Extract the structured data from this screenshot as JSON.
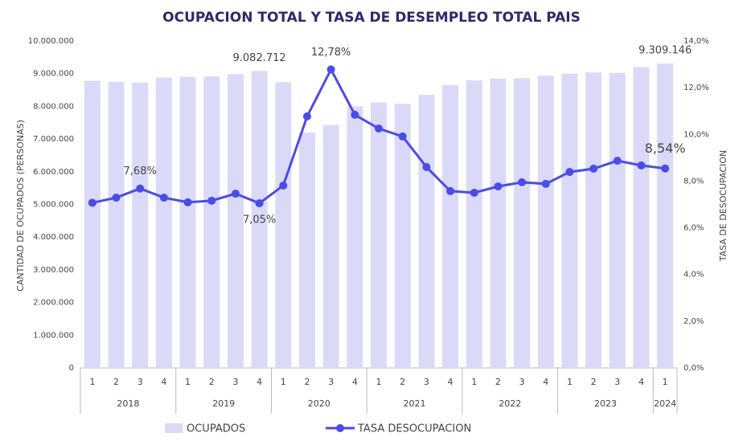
{
  "chart_data": {
    "type": "bar-line",
    "title": "OCUPACION TOTAL Y TASA DE DESEMPLEO TOTAL PAIS",
    "y_label": "CANTIDAD DE OCUPADOS (PERSONAS)",
    "y2_label": "TASA DE DESOCUPACION",
    "groups": [
      {
        "label": "2018",
        "categories": [
          "1",
          "2",
          "3",
          "4"
        ]
      },
      {
        "label": "2019",
        "categories": [
          "1",
          "2",
          "3",
          "4"
        ]
      },
      {
        "label": "2020",
        "categories": [
          "1",
          "2",
          "3",
          "4"
        ]
      },
      {
        "label": "2021",
        "categories": [
          "1",
          "2",
          "3",
          "4"
        ]
      },
      {
        "label": "2022",
        "categories": [
          "1",
          "2",
          "3",
          "4"
        ]
      },
      {
        "label": "2023",
        "categories": [
          "1",
          "2",
          "3",
          "4"
        ]
      },
      {
        "label": "2024",
        "categories": [
          "1"
        ]
      }
    ],
    "series": [
      {
        "name": "OCUPADOS",
        "type": "bar",
        "color": "#dadaf8",
        "values": [
          8780000,
          8750000,
          8730000,
          8880000,
          8900000,
          8920000,
          8980000,
          9082712,
          8740000,
          7200000,
          7430000,
          8000000,
          8120000,
          8080000,
          8350000,
          8650000,
          8800000,
          8850000,
          8860000,
          8940000,
          9000000,
          9040000,
          9020000,
          9200000,
          9309146
        ],
        "value_labels": [
          null,
          null,
          null,
          null,
          null,
          null,
          null,
          "9.082.712",
          null,
          null,
          null,
          null,
          null,
          null,
          null,
          null,
          null,
          null,
          null,
          null,
          null,
          null,
          null,
          null,
          "9.309.146"
        ]
      },
      {
        "name": "TASA DESOCUPACION",
        "type": "line",
        "axis": "y2",
        "color": "#4b4be6",
        "values": [
          7.07,
          7.29,
          7.68,
          7.29,
          7.09,
          7.16,
          7.46,
          7.05,
          7.81,
          10.77,
          12.78,
          10.84,
          10.25,
          9.91,
          8.6,
          7.57,
          7.5,
          7.77,
          7.95,
          7.88,
          8.39,
          8.53,
          8.87,
          8.67,
          8.54
        ],
        "value_labels": [
          null,
          null,
          "7,68%",
          null,
          null,
          null,
          null,
          "7,05%",
          null,
          null,
          "12,78%",
          null,
          null,
          null,
          null,
          null,
          null,
          null,
          null,
          null,
          null,
          null,
          null,
          null,
          "8,54%"
        ]
      }
    ],
    "ylim": [
      0,
      10000000
    ],
    "yticks": [
      0,
      {
        "value": 1000000,
        "label": "1.000.000"
      },
      {
        "value": 2000000,
        "label": "2.000.000"
      },
      {
        "value": 3000000,
        "label": "3.000.000"
      },
      {
        "value": 4000000,
        "label": "4.000.000"
      },
      {
        "value": 5000000,
        "label": "5.000.000"
      },
      {
        "value": 6000000,
        "label": "6.000.000"
      },
      {
        "value": 7000000,
        "label": "7.000.000"
      },
      {
        "value": 8000000,
        "label": "8.000.000"
      },
      {
        "value": 9000000,
        "label": "9.000.000"
      },
      {
        "value": 10000000,
        "label": "10.000.000"
      }
    ],
    "y2lim": [
      0,
      14
    ],
    "y2ticks": [
      {
        "value": 0,
        "label": "0,0%"
      },
      {
        "value": 2,
        "label": "2,0%"
      },
      {
        "value": 4,
        "label": "4,0%"
      },
      {
        "value": 6,
        "label": "6,0%"
      },
      {
        "value": 8,
        "label": "8,0%"
      },
      {
        "value": 10,
        "label": "10,0%"
      },
      {
        "value": 12,
        "label": "12,0%"
      },
      {
        "value": 14,
        "label": "14,0%"
      }
    ],
    "grid": false
  }
}
